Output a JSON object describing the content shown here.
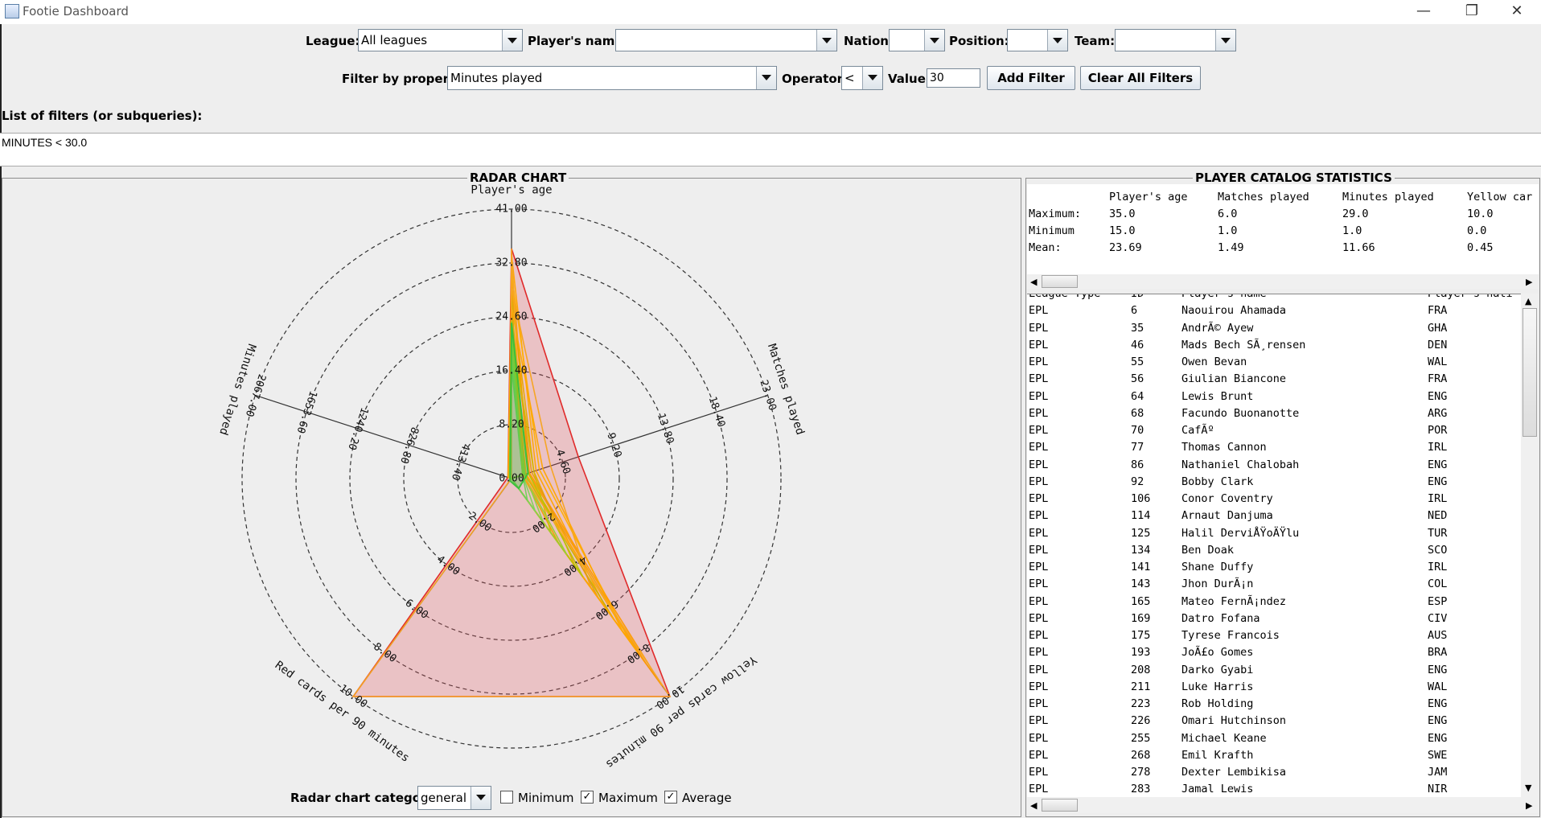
{
  "window": {
    "title": "Footie Dashboard"
  },
  "filters": {
    "league_label": "League:",
    "league_value": "All leagues",
    "player_label": "Player's name:",
    "player_value": "",
    "nation_label": "Nation:",
    "nation_value": "",
    "position_label": "Position:",
    "position_value": "",
    "team_label": "Team:",
    "team_value": "",
    "property_label": "Filter by property:",
    "property_value": "Minutes played",
    "operator_label": "Operator:",
    "operator_value": "<",
    "value_label": "Value:",
    "value_value": "30",
    "add_button": "Add Filter",
    "clear_button": "Clear All Filters",
    "list_label": "List of filters (or subqueries):",
    "list_items": [
      "MINUTES < 30.0"
    ]
  },
  "radar_panel": {
    "title": "RADAR CHART",
    "category_label": "Radar chart category:",
    "category_value": "general",
    "check_minimum": {
      "label": "Minimum",
      "checked": false
    },
    "check_maximum": {
      "label": "Maximum",
      "checked": true
    },
    "check_average": {
      "label": "Average",
      "checked": true
    }
  },
  "chart_data": {
    "type": "radar",
    "axes": [
      {
        "name": "Player's age",
        "max": 41.0,
        "ticks": [
          "0.00",
          "8.20",
          "16.40",
          "24.60",
          "32.80",
          "41.00"
        ]
      },
      {
        "name": "Matches played",
        "max": 23.0,
        "ticks": [
          "4.60",
          "9.20",
          "13.80",
          "18.40",
          "23.00"
        ]
      },
      {
        "name": "Yellow cards per 90 minutes",
        "max": 10.0,
        "ticks": [
          "2.00",
          "4.00",
          "6.00",
          "8.00",
          "10.00"
        ]
      },
      {
        "name": "Red cards per 90 minutes",
        "max": 10.0,
        "ticks": [
          "2.00",
          "4.00",
          "6.00",
          "8.00",
          "10.00"
        ]
      },
      {
        "name": "Minutes played",
        "max": 2067.0,
        "ticks": [
          "413.40",
          "826.80",
          "1240.20",
          "1653.60",
          "2067.00"
        ]
      }
    ],
    "series": [
      {
        "name": "Maximum",
        "color": "#e02a2a",
        "values": [
          35.0,
          6.0,
          10.0,
          10.0,
          29.0
        ]
      },
      {
        "name": "Average",
        "color": "#3cbf3c",
        "values": [
          23.69,
          1.49,
          0.45,
          0.1,
          11.66
        ]
      }
    ],
    "player_series": [
      [
        34,
        2.2,
        6,
        0,
        12
      ],
      [
        33,
        1.5,
        8.5,
        0,
        20
      ],
      [
        31,
        2.5,
        7.5,
        0,
        18
      ],
      [
        30,
        1.6,
        9.5,
        0,
        6
      ],
      [
        29,
        3.5,
        5,
        0,
        28
      ],
      [
        28,
        2.0,
        4,
        0,
        15
      ],
      [
        27,
        1.2,
        6.5,
        0,
        10
      ],
      [
        26,
        2.8,
        7,
        0,
        25
      ],
      [
        25,
        1.0,
        3,
        0,
        8
      ],
      [
        24,
        1.8,
        5.5,
        0,
        22
      ],
      [
        23,
        2.0,
        2.5,
        0,
        14
      ],
      [
        22,
        1.3,
        8,
        0,
        26
      ],
      [
        21,
        1.5,
        4.5,
        0,
        5
      ],
      [
        20,
        1.1,
        3.5,
        0,
        17
      ],
      [
        19,
        1.2,
        2,
        0,
        9
      ],
      [
        18,
        1.0,
        1.5,
        0,
        3
      ],
      [
        17,
        1.0,
        1,
        0,
        4
      ],
      [
        35,
        1.0,
        10,
        10,
        2
      ],
      [
        24,
        1.0,
        0,
        0,
        11
      ],
      [
        22,
        1.0,
        0,
        0,
        7
      ]
    ],
    "player_colors": [
      "#ffa500",
      "#f39c12",
      "#ffb000",
      "#ff9900",
      "#f7a31c",
      "#e6a800",
      "#c9b000",
      "#ffa500",
      "#f0a000",
      "#e89a10",
      "#d4b800",
      "#ffa500",
      "#b5c400",
      "#9ccc30",
      "#8ad14a",
      "#7dd35a",
      "#6fcf5a",
      "#f5a623",
      "#a6c820",
      "#8fd040"
    ]
  },
  "stats_panel": {
    "title": "PLAYER CATALOG STATISTICS",
    "headers": [
      "",
      "Player's age",
      "Matches played",
      "Minutes played",
      "Yellow car"
    ],
    "rows": [
      [
        "Maximum:",
        "35.0",
        "6.0",
        "29.0",
        "10.0"
      ],
      [
        "Minimum",
        "15.0",
        "1.0",
        "1.0",
        "0.0"
      ],
      [
        "Mean:",
        "23.69",
        "1.49",
        "11.66",
        "0.45"
      ]
    ]
  },
  "player_list": {
    "header": [
      "League Type",
      "ID",
      "Player's name",
      "Player's nati"
    ],
    "rows": [
      [
        "EPL",
        "6",
        "Naouirou Ahamada",
        "FRA"
      ],
      [
        "EPL",
        "35",
        "AndrÃ© Ayew",
        "GHA"
      ],
      [
        "EPL",
        "46",
        "Mads Bech SÃ¸rensen",
        "DEN"
      ],
      [
        "EPL",
        "55",
        "Owen Bevan",
        "WAL"
      ],
      [
        "EPL",
        "56",
        "Giulian Biancone",
        "FRA"
      ],
      [
        "EPL",
        "64",
        "Lewis Brunt",
        "ENG"
      ],
      [
        "EPL",
        "68",
        "Facundo Buonanotte",
        "ARG"
      ],
      [
        "EPL",
        "70",
        "CafÃº",
        "POR"
      ],
      [
        "EPL",
        "77",
        "Thomas Cannon",
        "IRL"
      ],
      [
        "EPL",
        "86",
        "Nathaniel Chalobah",
        "ENG"
      ],
      [
        "EPL",
        "92",
        "Bobby Clark",
        "ENG"
      ],
      [
        "EPL",
        "106",
        "Conor Coventry",
        "IRL"
      ],
      [
        "EPL",
        "114",
        "Arnaut Danjuma",
        "NED"
      ],
      [
        "EPL",
        "125",
        "Halil DerviÅŸoÄŸlu",
        "TUR"
      ],
      [
        "EPL",
        "134",
        "Ben Doak",
        "SCO"
      ],
      [
        "EPL",
        "141",
        "Shane Duffy",
        "IRL"
      ],
      [
        "EPL",
        "143",
        "Jhon DurÃ¡n",
        "COL"
      ],
      [
        "EPL",
        "165",
        "Mateo FernÃ¡ndez",
        "ESP"
      ],
      [
        "EPL",
        "169",
        "Datro Fofana",
        "CIV"
      ],
      [
        "EPL",
        "175",
        "Tyrese Francois",
        "AUS"
      ],
      [
        "EPL",
        "193",
        "JoÃ£o Gomes",
        "BRA"
      ],
      [
        "EPL",
        "208",
        "Darko Gyabi",
        "ENG"
      ],
      [
        "EPL",
        "211",
        "Luke Harris",
        "WAL"
      ],
      [
        "EPL",
        "223",
        "Rob Holding",
        "ENG"
      ],
      [
        "EPL",
        "226",
        "Omari Hutchinson",
        "ENG"
      ],
      [
        "EPL",
        "255",
        "Michael Keane",
        "ENG"
      ],
      [
        "EPL",
        "268",
        "Emil Krafth",
        "SWE"
      ],
      [
        "EPL",
        "278",
        "Dexter Lembikisa",
        "JAM"
      ],
      [
        "EPL",
        "283",
        "Jamal Lewis",
        "NIR"
      ]
    ]
  }
}
